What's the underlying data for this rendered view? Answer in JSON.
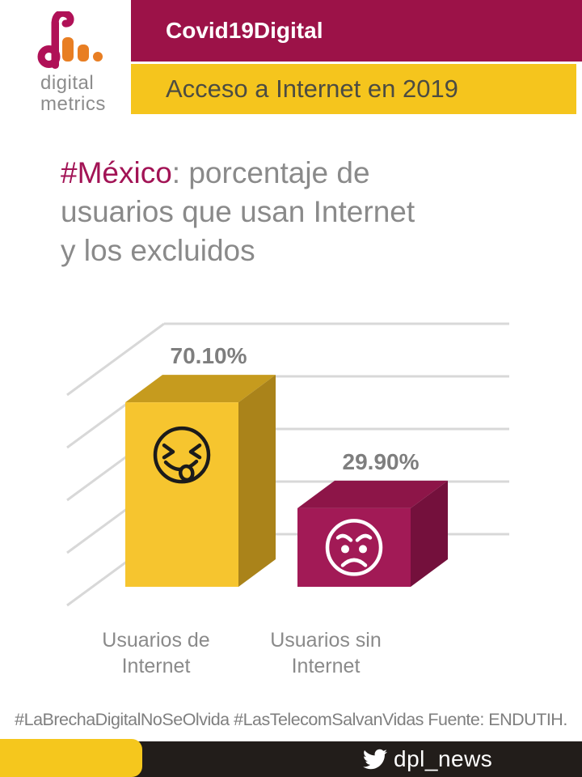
{
  "logo": {
    "name_line1": "digital",
    "name_line2": "metrics",
    "magenta": "#B01157",
    "orange": "#E87E23"
  },
  "header": {
    "campaign": "Covid19Digital",
    "campaign_bg": "#9C1248",
    "topic": "Acceso a Internet en 2019",
    "topic_bg": "#F5C51D"
  },
  "title": {
    "hashtag": "#México",
    "line1_rest": ": porcentaje de",
    "line2": "usuarios que usan Internet",
    "line3": "y los excluidos"
  },
  "chart_data": {
    "type": "bar",
    "style": "3d-perspective",
    "categories": [
      "Usuarios de Internet",
      "Usuarios sin Internet"
    ],
    "values": [
      70.1,
      29.9
    ],
    "value_labels": [
      "70.10%",
      "29.90%"
    ],
    "emojis": [
      "winking-tongue-face",
      "angry-face"
    ],
    "colors": [
      {
        "front": "#F6C52F",
        "top": "#C69B1E",
        "side": "#AA831A"
      },
      {
        "front": "#A21A56",
        "top": "#8D1548",
        "side": "#74103C"
      }
    ],
    "grid": true,
    "grid_color": "#D8D8D8",
    "grid_step": 20,
    "ylim": [
      0,
      100
    ],
    "label_color": "#7E7E7E"
  },
  "footer": {
    "hashtags": "#LaBrechaDigitalNoSeOlvida #LasTelecomSalvanVidas Fuente: ENDUTIH.",
    "handle": "dpl_news"
  }
}
